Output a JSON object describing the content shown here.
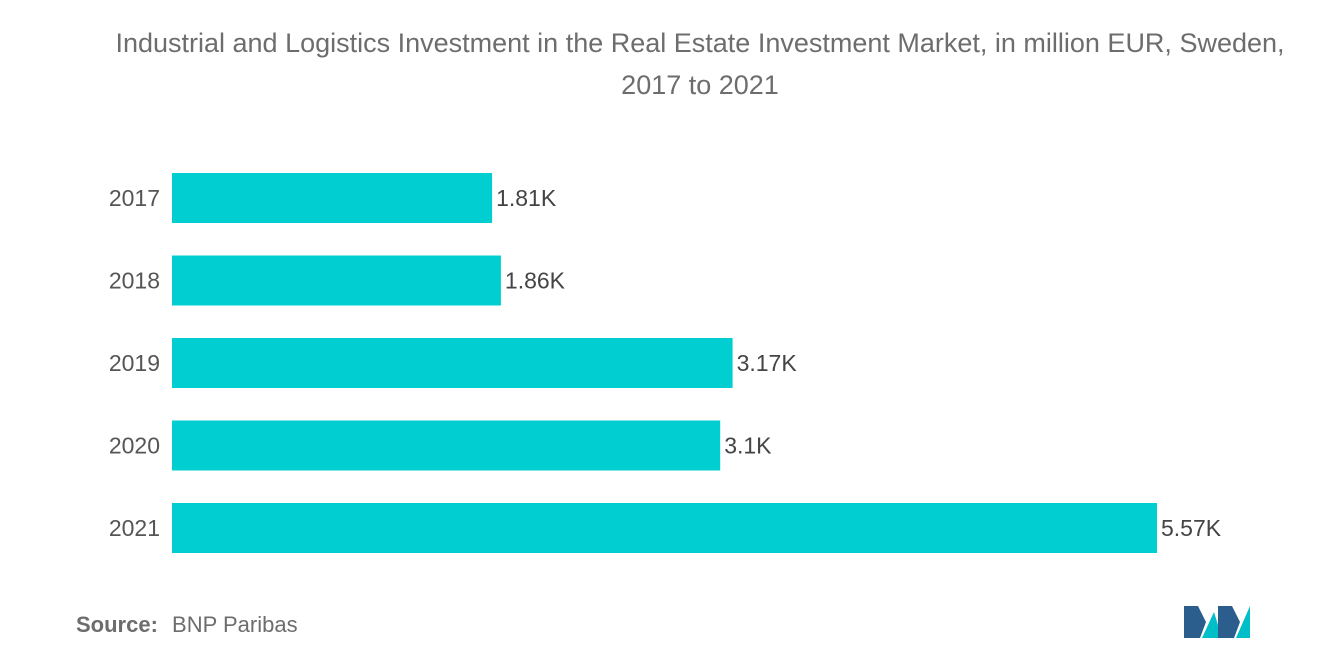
{
  "chart_data": {
    "type": "bar",
    "orientation": "horizontal",
    "title": "Industrial and Logistics Investment in the Real Estate Investment Market, in million EUR, Sweden, 2017 to 2021",
    "categories": [
      "2017",
      "2018",
      "2019",
      "2020",
      "2021"
    ],
    "values": [
      1810,
      1860,
      3170,
      3100,
      5570
    ],
    "value_labels": [
      "1.81K",
      "1.86K",
      "3.17K",
      "3.1K",
      "5.57K"
    ],
    "xlabel": "",
    "ylabel": "",
    "xlim": [
      0,
      5570
    ],
    "grid": false,
    "legend": "none",
    "bar_color": "#00CED1"
  },
  "source": {
    "label": "Source:",
    "text": "BNP Paribas"
  },
  "logo": {
    "icon": "mordor-intelligence-logo-icon",
    "colors": [
      "#2B5E8C",
      "#00BFC8"
    ]
  }
}
